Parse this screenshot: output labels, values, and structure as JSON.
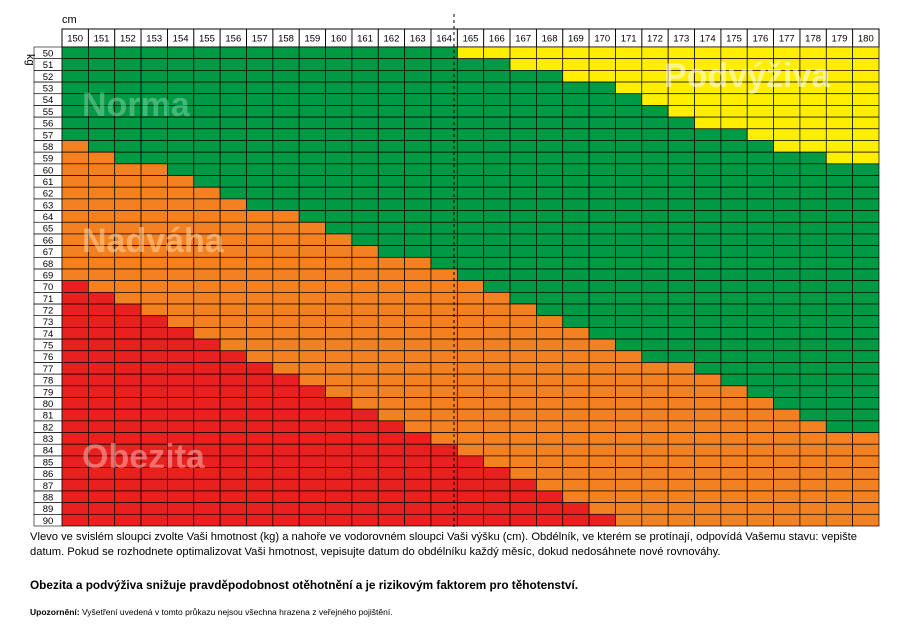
{
  "chart_data": {
    "type": "heatmap",
    "xlabel": "cm",
    "ylabel": "kg",
    "x": [
      150,
      151,
      152,
      153,
      154,
      155,
      156,
      157,
      158,
      159,
      160,
      161,
      162,
      163,
      164,
      165,
      166,
      167,
      168,
      169,
      170,
      171,
      172,
      173,
      174,
      175,
      176,
      177,
      178,
      179,
      180
    ],
    "y": [
      50,
      51,
      52,
      53,
      54,
      55,
      56,
      57,
      58,
      59,
      60,
      61,
      62,
      63,
      64,
      65,
      66,
      67,
      68,
      69,
      70,
      71,
      72,
      73,
      74,
      75,
      76,
      77,
      78,
      79,
      80,
      81,
      82,
      83,
      84,
      85,
      86,
      87,
      88,
      89,
      90
    ],
    "underweight_max_kg": [
      49,
      49,
      49,
      49,
      49,
      49,
      49,
      49,
      49,
      49,
      49,
      49,
      49,
      49,
      49,
      50,
      50,
      51,
      51,
      52,
      52,
      53,
      54,
      55,
      56,
      56,
      57,
      58,
      58,
      59,
      59
    ],
    "normal_max_kg": [
      57,
      58,
      59,
      59,
      60,
      61,
      62,
      63,
      63,
      64,
      65,
      66,
      67,
      67,
      68,
      69,
      70,
      71,
      72,
      73,
      74,
      75,
      76,
      76,
      77,
      78,
      79,
      80,
      81,
      82,
      82
    ],
    "overweight_max_kg": [
      69,
      70,
      71,
      72,
      73,
      74,
      75,
      76,
      77,
      78,
      79,
      80,
      81,
      82,
      83,
      84,
      85,
      86,
      87,
      88,
      89,
      90,
      90,
      90,
      90,
      90,
      90,
      90,
      90,
      90,
      90
    ],
    "categories": [
      {
        "name": "Podvýživa",
        "color": "#ffee00"
      },
      {
        "name": "Norma",
        "color": "#009944"
      },
      {
        "name": "Nadváha",
        "color": "#f4811f"
      },
      {
        "name": "Obezita",
        "color": "#e8201f"
      }
    ]
  },
  "text": {
    "instructions": "Vlevo ve svislém sloupci zvolte Vaši hmotnost (kg) a nahoře ve vodorovném sloupci Vaši výšku (cm). Obdélník, ve kterém se protínají, odpovídá Vašemu stavu: vepište datum. Pokud se rozhodnete optimalizovat Vaši hmotnost, vepisujte datum do obdélníku každý měsíc, dokud nedosáhnete nové rovnováhy.",
    "warning": "Obezita a podvýživa snižuje pravděpodobnost otěhotnění a je rizikovým faktorem pro těhotenství.",
    "disclaimer_label": "Upozornění:",
    "disclaimer": "Vyšetření uvedená v tomto průkazu nejsou všechna hrazena z veřejného pojištění."
  }
}
